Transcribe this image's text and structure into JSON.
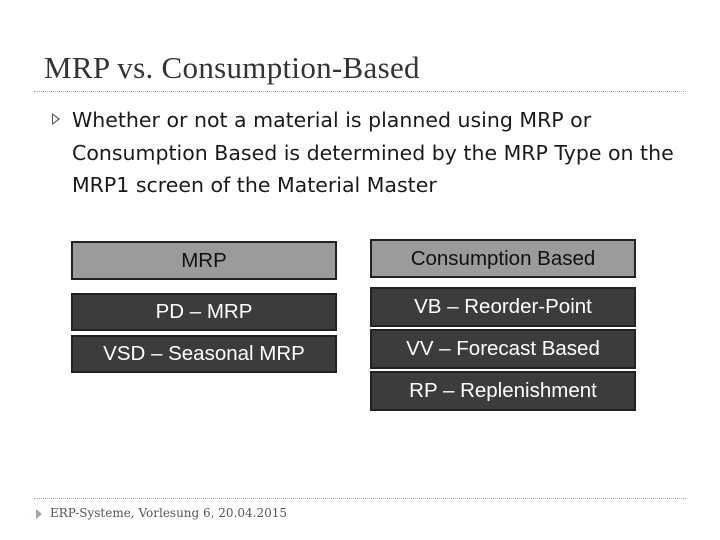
{
  "slide": {
    "title": "MRP vs. Consumption-Based",
    "bullet_icon": "triangle-bullet-icon",
    "bullet_text": "Whether or not a material is planned using MRP or Consumption Based is determined by the MRP Type on the MRP1 screen of the Material Master"
  },
  "table": {
    "mrp_header": "MRP",
    "consumption_header": "Consumption Based",
    "mrp_types": [
      "PD – MRP",
      "VSD – Seasonal MRP"
    ],
    "consumption_types": [
      "VB – Reorder-Point",
      "VV – Forecast Based",
      "RP – Replenishment"
    ]
  },
  "footer": {
    "text": "ERP-Systeme, Vorlesung 6, 20.04.2015"
  },
  "colors": {
    "header_fill": "#9b9b9b",
    "type_fill": "#3c3c3c",
    "border": "#222222"
  }
}
